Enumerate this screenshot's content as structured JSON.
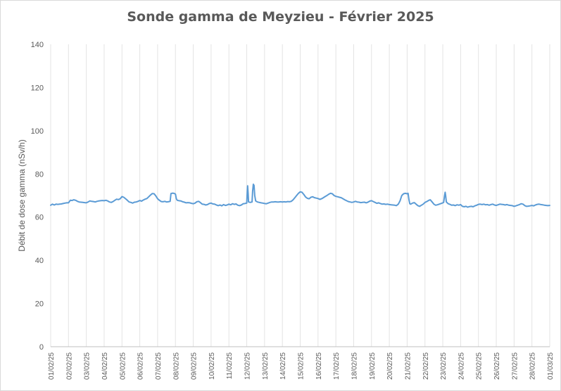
{
  "chart_data": {
    "type": "line",
    "title": "Sonde gamma de Meyzieu - Février 2025",
    "ylabel": "Débit de dose gamma (nSv/h)",
    "xlabel": "",
    "ylim": [
      0,
      140
    ],
    "yticks": [
      0,
      20,
      40,
      60,
      80,
      100,
      120,
      140
    ],
    "grid": "vertical",
    "legend": "none",
    "color": "#5b9bd5",
    "x_tick_labels": [
      "01/02/25",
      "02/02/25",
      "03/02/25",
      "04/02/25",
      "05/02/25",
      "06/02/25",
      "07/02/25",
      "08/02/25",
      "09/02/25",
      "10/02/25",
      "11/02/25",
      "12/02/25",
      "13/02/25",
      "14/02/25",
      "15/02/25",
      "16/02/25",
      "17/02/25",
      "18/02/25",
      "19/02/25",
      "20/02/25",
      "21/02/25",
      "22/02/25",
      "23/02/25",
      "24/02/25",
      "25/02/25",
      "26/02/25",
      "27/02/25",
      "28/02/25",
      "01/03/25"
    ],
    "series": [
      {
        "x_unit": "days since 01/02/25 00:00",
        "points": [
          [
            0.0,
            65.5
          ],
          [
            0.1,
            66.0
          ],
          [
            0.2,
            65.6
          ],
          [
            0.3,
            66.0
          ],
          [
            0.4,
            65.9
          ],
          [
            0.5,
            66.0
          ],
          [
            0.6,
            66.1
          ],
          [
            0.7,
            66.3
          ],
          [
            0.8,
            66.5
          ],
          [
            0.9,
            66.6
          ],
          [
            1.0,
            66.6
          ],
          [
            1.1,
            67.8
          ],
          [
            1.2,
            67.7
          ],
          [
            1.3,
            68.0
          ],
          [
            1.4,
            67.8
          ],
          [
            1.5,
            67.3
          ],
          [
            1.6,
            67.0
          ],
          [
            1.7,
            66.9
          ],
          [
            1.8,
            66.8
          ],
          [
            1.9,
            66.7
          ],
          [
            2.0,
            66.6
          ],
          [
            2.1,
            67.0
          ],
          [
            2.2,
            67.5
          ],
          [
            2.3,
            67.3
          ],
          [
            2.4,
            67.2
          ],
          [
            2.5,
            67.0
          ],
          [
            2.6,
            67.3
          ],
          [
            2.7,
            67.5
          ],
          [
            2.8,
            67.6
          ],
          [
            2.9,
            67.7
          ],
          [
            3.0,
            67.6
          ],
          [
            3.1,
            67.8
          ],
          [
            3.2,
            67.5
          ],
          [
            3.3,
            67.0
          ],
          [
            3.4,
            66.8
          ],
          [
            3.5,
            67.2
          ],
          [
            3.6,
            67.8
          ],
          [
            3.7,
            68.3
          ],
          [
            3.8,
            68.1
          ],
          [
            3.9,
            68.5
          ],
          [
            4.0,
            69.5
          ],
          [
            4.1,
            69.2
          ],
          [
            4.2,
            68.5
          ],
          [
            4.3,
            67.8
          ],
          [
            4.4,
            67.0
          ],
          [
            4.5,
            66.8
          ],
          [
            4.6,
            66.5
          ],
          [
            4.7,
            66.9
          ],
          [
            4.8,
            67.0
          ],
          [
            4.9,
            67.3
          ],
          [
            5.0,
            67.7
          ],
          [
            5.1,
            67.4
          ],
          [
            5.2,
            67.9
          ],
          [
            5.3,
            68.3
          ],
          [
            5.4,
            68.6
          ],
          [
            5.5,
            69.4
          ],
          [
            5.6,
            70.2
          ],
          [
            5.7,
            70.9
          ],
          [
            5.8,
            70.8
          ],
          [
            5.9,
            69.8
          ],
          [
            6.0,
            68.5
          ],
          [
            6.1,
            67.8
          ],
          [
            6.2,
            67.2
          ],
          [
            6.3,
            67.1
          ],
          [
            6.4,
            67.3
          ],
          [
            6.5,
            67.0
          ],
          [
            6.6,
            67.1
          ],
          [
            6.7,
            67.3
          ],
          [
            6.75,
            70.9
          ],
          [
            6.85,
            71.1
          ],
          [
            6.95,
            70.9
          ],
          [
            7.0,
            70.6
          ],
          [
            7.05,
            68.5
          ],
          [
            7.1,
            67.8
          ],
          [
            7.2,
            67.6
          ],
          [
            7.3,
            67.5
          ],
          [
            7.4,
            67.1
          ],
          [
            7.5,
            66.9
          ],
          [
            7.6,
            66.6
          ],
          [
            7.7,
            66.7
          ],
          [
            7.8,
            66.6
          ],
          [
            7.9,
            66.4
          ],
          [
            8.0,
            66.2
          ],
          [
            8.1,
            66.5
          ],
          [
            8.2,
            67.1
          ],
          [
            8.3,
            67.3
          ],
          [
            8.4,
            66.7
          ],
          [
            8.5,
            66.0
          ],
          [
            8.6,
            65.9
          ],
          [
            8.7,
            65.6
          ],
          [
            8.8,
            65.8
          ],
          [
            8.9,
            66.3
          ],
          [
            9.0,
            66.5
          ],
          [
            9.1,
            66.1
          ],
          [
            9.2,
            66.0
          ],
          [
            9.3,
            65.6
          ],
          [
            9.4,
            65.3
          ],
          [
            9.5,
            65.6
          ],
          [
            9.6,
            65.2
          ],
          [
            9.7,
            65.8
          ],
          [
            9.8,
            65.4
          ],
          [
            9.9,
            65.6
          ],
          [
            10.0,
            66.0
          ],
          [
            10.1,
            65.7
          ],
          [
            10.2,
            66.2
          ],
          [
            10.3,
            65.9
          ],
          [
            10.4,
            66.1
          ],
          [
            10.5,
            65.5
          ],
          [
            10.6,
            65.3
          ],
          [
            10.7,
            65.6
          ],
          [
            10.8,
            66.2
          ],
          [
            10.9,
            66.3
          ],
          [
            11.0,
            66.5
          ],
          [
            11.02,
            70.0
          ],
          [
            11.05,
            74.5
          ],
          [
            11.08,
            70.5
          ],
          [
            11.1,
            67.0
          ],
          [
            11.2,
            66.8
          ],
          [
            11.3,
            67.0
          ],
          [
            11.33,
            72.0
          ],
          [
            11.37,
            75.2
          ],
          [
            11.41,
            74.7
          ],
          [
            11.45,
            70.0
          ],
          [
            11.5,
            67.5
          ],
          [
            11.6,
            67.0
          ],
          [
            11.7,
            66.8
          ],
          [
            11.8,
            66.6
          ],
          [
            11.9,
            66.5
          ],
          [
            12.0,
            66.3
          ],
          [
            12.1,
            66.2
          ],
          [
            12.2,
            66.5
          ],
          [
            12.3,
            66.8
          ],
          [
            12.4,
            67.0
          ],
          [
            12.5,
            67.0
          ],
          [
            12.6,
            67.1
          ],
          [
            12.7,
            67.0
          ],
          [
            12.8,
            67.0
          ],
          [
            12.9,
            67.1
          ],
          [
            13.0,
            67.0
          ],
          [
            13.1,
            67.1
          ],
          [
            13.2,
            67.0
          ],
          [
            13.3,
            67.2
          ],
          [
            13.4,
            67.1
          ],
          [
            13.5,
            67.3
          ],
          [
            13.6,
            68.0
          ],
          [
            13.7,
            69.0
          ],
          [
            13.8,
            70.0
          ],
          [
            13.9,
            71.0
          ],
          [
            14.0,
            71.7
          ],
          [
            14.1,
            71.5
          ],
          [
            14.2,
            70.5
          ],
          [
            14.3,
            69.3
          ],
          [
            14.4,
            68.7
          ],
          [
            14.5,
            68.5
          ],
          [
            14.6,
            69.2
          ],
          [
            14.7,
            69.4
          ],
          [
            14.8,
            69.0
          ],
          [
            14.9,
            68.8
          ],
          [
            15.0,
            68.6
          ],
          [
            15.1,
            68.2
          ],
          [
            15.2,
            68.5
          ],
          [
            15.3,
            69.0
          ],
          [
            15.4,
            69.5
          ],
          [
            15.5,
            70.0
          ],
          [
            15.6,
            70.6
          ],
          [
            15.7,
            71.0
          ],
          [
            15.8,
            70.8
          ],
          [
            15.9,
            70.0
          ],
          [
            16.0,
            69.6
          ],
          [
            16.1,
            69.4
          ],
          [
            16.2,
            69.2
          ],
          [
            16.3,
            69.0
          ],
          [
            16.4,
            68.5
          ],
          [
            16.5,
            68.0
          ],
          [
            16.6,
            67.6
          ],
          [
            16.7,
            67.2
          ],
          [
            16.8,
            67.0
          ],
          [
            16.9,
            66.8
          ],
          [
            17.0,
            67.0
          ],
          [
            17.1,
            67.3
          ],
          [
            17.2,
            67.0
          ],
          [
            17.3,
            66.9
          ],
          [
            17.4,
            66.7
          ],
          [
            17.5,
            66.8
          ],
          [
            17.6,
            66.9
          ],
          [
            17.7,
            66.6
          ],
          [
            17.8,
            66.9
          ],
          [
            17.9,
            67.4
          ],
          [
            18.0,
            67.6
          ],
          [
            18.1,
            67.2
          ],
          [
            18.2,
            66.8
          ],
          [
            18.3,
            66.4
          ],
          [
            18.4,
            66.6
          ],
          [
            18.5,
            66.3
          ],
          [
            18.6,
            66.0
          ],
          [
            18.7,
            66.1
          ],
          [
            18.8,
            65.9
          ],
          [
            18.9,
            66.0
          ],
          [
            19.0,
            65.8
          ],
          [
            19.1,
            65.7
          ],
          [
            19.2,
            65.6
          ],
          [
            19.3,
            65.5
          ],
          [
            19.4,
            65.3
          ],
          [
            19.5,
            66.0
          ],
          [
            19.6,
            67.5
          ],
          [
            19.7,
            70.0
          ],
          [
            19.8,
            70.8
          ],
          [
            19.9,
            71.0
          ],
          [
            20.0,
            70.8
          ],
          [
            20.05,
            71.0
          ],
          [
            20.1,
            68.0
          ],
          [
            20.15,
            66.2
          ],
          [
            20.2,
            66.0
          ],
          [
            20.3,
            66.5
          ],
          [
            20.4,
            66.7
          ],
          [
            20.5,
            66.0
          ],
          [
            20.6,
            65.3
          ],
          [
            20.7,
            65.0
          ],
          [
            20.8,
            65.5
          ],
          [
            20.9,
            66.0
          ],
          [
            21.0,
            66.8
          ],
          [
            21.1,
            67.2
          ],
          [
            21.2,
            67.7
          ],
          [
            21.3,
            68.0
          ],
          [
            21.4,
            67.0
          ],
          [
            21.5,
            66.0
          ],
          [
            21.6,
            65.5
          ],
          [
            21.7,
            65.7
          ],
          [
            21.8,
            66.0
          ],
          [
            21.9,
            66.3
          ],
          [
            22.0,
            66.6
          ],
          [
            22.05,
            66.8
          ],
          [
            22.1,
            70.0
          ],
          [
            22.13,
            71.5
          ],
          [
            22.16,
            70.0
          ],
          [
            22.2,
            67.0
          ],
          [
            22.3,
            66.2
          ],
          [
            22.4,
            65.9
          ],
          [
            22.5,
            65.5
          ],
          [
            22.6,
            65.6
          ],
          [
            22.7,
            65.3
          ],
          [
            22.8,
            65.7
          ],
          [
            22.9,
            65.5
          ],
          [
            23.0,
            65.8
          ],
          [
            23.1,
            65.0
          ],
          [
            23.2,
            64.8
          ],
          [
            23.3,
            65.0
          ],
          [
            23.4,
            64.6
          ],
          [
            23.5,
            64.9
          ],
          [
            23.6,
            65.0
          ],
          [
            23.7,
            64.8
          ],
          [
            23.8,
            65.2
          ],
          [
            23.9,
            65.5
          ],
          [
            24.0,
            65.9
          ],
          [
            24.1,
            66.0
          ],
          [
            24.2,
            65.8
          ],
          [
            24.3,
            66.0
          ],
          [
            24.4,
            65.7
          ],
          [
            24.5,
            65.8
          ],
          [
            24.6,
            65.5
          ],
          [
            24.7,
            65.8
          ],
          [
            24.8,
            66.0
          ],
          [
            24.9,
            65.6
          ],
          [
            25.0,
            65.4
          ],
          [
            25.1,
            65.7
          ],
          [
            25.2,
            66.0
          ],
          [
            25.3,
            65.9
          ],
          [
            25.4,
            65.8
          ],
          [
            25.5,
            65.6
          ],
          [
            25.6,
            65.8
          ],
          [
            25.7,
            65.5
          ],
          [
            25.8,
            65.4
          ],
          [
            25.9,
            65.3
          ],
          [
            26.0,
            65.0
          ],
          [
            26.1,
            65.2
          ],
          [
            26.2,
            65.5
          ],
          [
            26.3,
            65.8
          ],
          [
            26.4,
            66.2
          ],
          [
            26.5,
            66.0
          ],
          [
            26.6,
            65.3
          ],
          [
            26.7,
            65.0
          ],
          [
            26.8,
            65.1
          ],
          [
            26.9,
            65.2
          ],
          [
            27.0,
            65.4
          ],
          [
            27.1,
            65.2
          ],
          [
            27.2,
            65.6
          ],
          [
            27.3,
            65.9
          ],
          [
            27.4,
            66.0
          ],
          [
            27.5,
            65.8
          ],
          [
            27.6,
            65.7
          ],
          [
            27.7,
            65.5
          ],
          [
            27.8,
            65.4
          ],
          [
            27.9,
            65.3
          ],
          [
            28.0,
            65.4
          ]
        ]
      }
    ]
  }
}
